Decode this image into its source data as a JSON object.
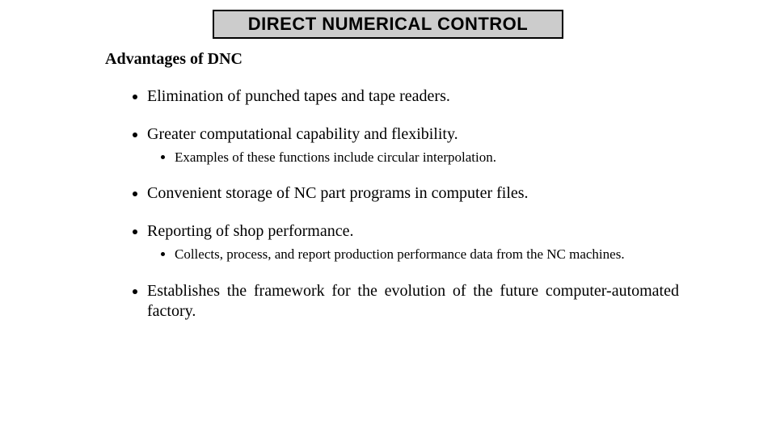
{
  "title": "DIRECT NUMERICAL CONTROL",
  "subtitle": "Advantages of DNC",
  "bullets": {
    "b1": "Elimination of punched tapes and tape readers.",
    "b2": "Greater computational capability and flexibility.",
    "b2_sub1": "Examples of these functions include circular interpolation.",
    "b3": "Convenient storage of NC part programs in computer files.",
    "b4": "Reporting of shop performance.",
    "b4_sub1": "Collects, process, and report  production performance data from the NC machines.",
    "b5": "Establishes the framework for the evolution of the future computer-automated factory."
  },
  "colors": {
    "title_bg": "#cccccc",
    "title_border": "#000000",
    "text": "#000000",
    "page_bg": "#ffffff"
  },
  "typography": {
    "title_font": "Arial",
    "title_size_pt": 16,
    "title_weight": 900,
    "body_font": "Times New Roman",
    "subtitle_size_pt": 15,
    "body_size_pt": 15,
    "sub_size_pt": 13
  }
}
